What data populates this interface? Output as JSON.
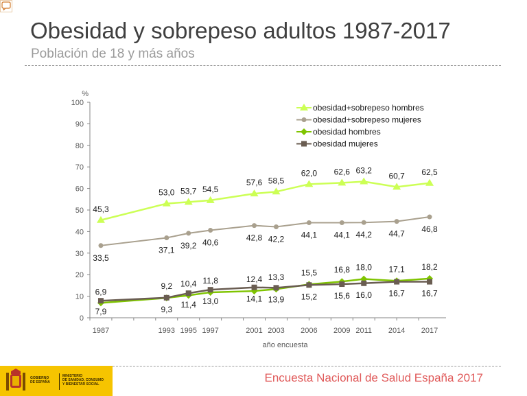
{
  "header": {
    "title": "Obesidad y sobrepeso adultos 1987-2017",
    "subtitle": "Población de 18 y más años"
  },
  "footer": {
    "source": "Encuesta Nacional de Salud España 2017",
    "logo_left": [
      "GOBIERNO",
      "DE ESPAÑA"
    ],
    "logo_right": [
      "MINISTERIO",
      "DE SANIDAD, CONSUMO",
      "Y BIENESTAR SOCIAL"
    ],
    "accent_color": "#f6c400"
  },
  "icons": {
    "corner": "comment-icon"
  },
  "chart_data": {
    "type": "line",
    "xlabel": "año encuesta",
    "ylabel": "%",
    "ylim": [
      0,
      100
    ],
    "yticks": [
      0,
      10,
      20,
      30,
      40,
      50,
      60,
      70,
      80,
      90,
      100
    ],
    "x": [
      1987,
      1993,
      1995,
      1997,
      2001,
      2003,
      2006,
      2009,
      2011,
      2014,
      2017
    ],
    "grid": false,
    "legend_position": "top-right",
    "series": [
      {
        "name": "obesidad+sobrepeso hombres",
        "color": "#ccff55",
        "marker": "triangle",
        "values": [
          45.3,
          53.0,
          53.7,
          54.5,
          57.6,
          58.5,
          62.0,
          62.6,
          63.2,
          60.7,
          62.5
        ],
        "labels": [
          "45,3",
          "53,0",
          "53,7",
          "54,5",
          "57,6",
          "58,5",
          "62,0",
          "62,6",
          "63,2",
          "60,7",
          "62,5"
        ]
      },
      {
        "name": "obesidad+sobrepeso mujeres",
        "color": "#a9a08e",
        "marker": "circle",
        "values": [
          33.5,
          37.1,
          39.2,
          40.6,
          42.8,
          42.2,
          44.1,
          44.1,
          44.2,
          44.7,
          46.8
        ],
        "labels": [
          "33,5",
          "37,1",
          "39,2",
          "40,6",
          "42,8",
          "42,2",
          "44,1",
          "44,1",
          "44,2",
          "44,7",
          "46,8"
        ]
      },
      {
        "name": "obesidad hombres",
        "color": "#7fc400",
        "marker": "diamond",
        "values": [
          6.9,
          9.2,
          10.4,
          11.8,
          12.4,
          13.3,
          15.5,
          16.8,
          18.0,
          17.1,
          18.2
        ],
        "labels": [
          "6,9",
          "9,2",
          "10,4",
          "11,8",
          "12,4",
          "13,3",
          "15,5",
          "16,8",
          "18,0",
          "17,1",
          "18,2"
        ]
      },
      {
        "name": "obesidad mujeres",
        "color": "#6a5d52",
        "marker": "square",
        "values": [
          7.9,
          9.3,
          11.4,
          13.0,
          14.1,
          13.9,
          15.2,
          15.6,
          16.0,
          16.7,
          16.7
        ],
        "labels": [
          "7,9",
          "9,3",
          "11,4",
          "13,0",
          "14,1",
          "13,9",
          "15,2",
          "15,6",
          "16,0",
          "16,7",
          "16,7"
        ]
      }
    ]
  }
}
